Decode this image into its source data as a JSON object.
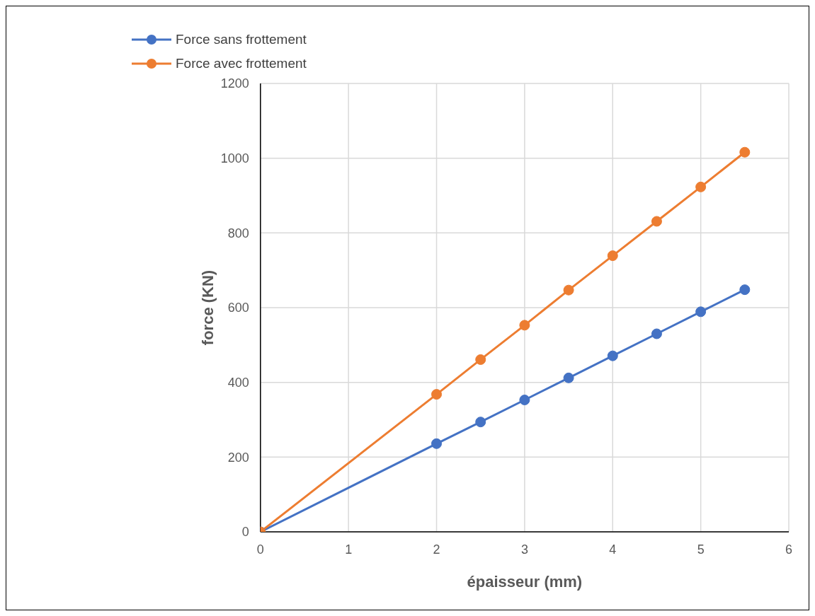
{
  "chart_data": {
    "type": "line",
    "xlabel": "épaisseur (mm)",
    "ylabel": "force (KN)",
    "x": [
      0,
      2,
      2.5,
      3,
      3.5,
      4,
      4.5,
      5,
      5.5
    ],
    "series": [
      {
        "name": "Force sans frottement",
        "color": "#4472c4",
        "values": [
          0,
          236,
          294,
          353,
          412,
          471,
          530,
          589,
          648
        ]
      },
      {
        "name": "Force avec frottement",
        "color": "#ed7d31",
        "values": [
          0,
          368,
          461,
          553,
          647,
          739,
          831,
          923,
          1016
        ]
      }
    ],
    "xlim": [
      0,
      6
    ],
    "xticks": [
      0,
      1,
      2,
      3,
      4,
      5,
      6
    ],
    "ylim": [
      0,
      1200
    ],
    "yticks": [
      0,
      200,
      400,
      600,
      800,
      1000,
      1200
    ],
    "grid": true,
    "legend": "top left",
    "marker": "circle",
    "line_style": "solid"
  }
}
